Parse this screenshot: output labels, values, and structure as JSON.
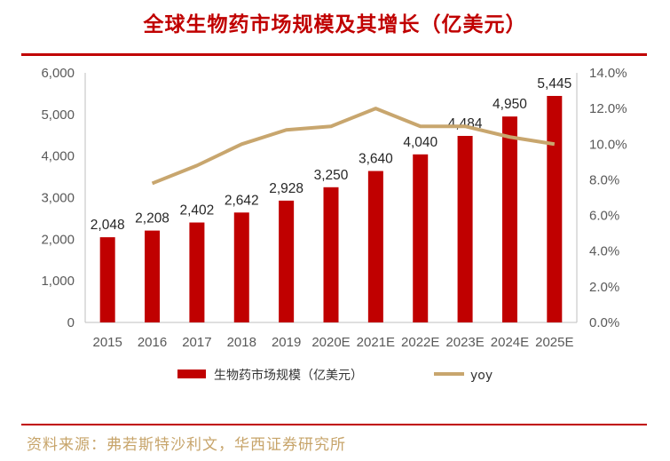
{
  "title": "全球生物药市场规模及其增长（亿美元）",
  "source": "资料来源：弗若斯特沙利文，华西证券研究所",
  "colors": {
    "bar": "#c00000",
    "line": "#c8a66e",
    "axis": "#bfbfbf"
  },
  "chart_data": {
    "type": "bar",
    "categories": [
      "2015",
      "2016",
      "2017",
      "2018",
      "2019",
      "2020E",
      "2021E",
      "2022E",
      "2023E",
      "2024E",
      "2025E"
    ],
    "series": [
      {
        "name": "生物药市场规模（亿美元）",
        "type": "bar",
        "axis": "left",
        "values": [
          2048,
          2208,
          2402,
          2642,
          2928,
          3250,
          3640,
          4040,
          4484,
          4950,
          5445
        ]
      },
      {
        "name": "yoy",
        "type": "line",
        "axis": "right",
        "values": [
          null,
          7.8,
          8.8,
          10.0,
          10.8,
          11.0,
          12.0,
          11.0,
          11.0,
          10.4,
          10.0
        ]
      }
    ],
    "data_labels": [
      "2,048",
      "2,208",
      "2,402",
      "2,642",
      "2,928",
      "3,250",
      "3,640",
      "4,040",
      "4,484",
      "4,950",
      "5,445"
    ],
    "y_left": {
      "ylim": [
        0,
        6000
      ],
      "ticks": [
        "0",
        "1,000",
        "2,000",
        "3,000",
        "4,000",
        "5,000",
        "6,000"
      ]
    },
    "y_right": {
      "ylim": [
        0,
        14
      ],
      "ticks": [
        "0.0%",
        "2.0%",
        "4.0%",
        "6.0%",
        "8.0%",
        "10.0%",
        "12.0%",
        "14.0%"
      ]
    },
    "grid": false,
    "legend_position": "bottom"
  }
}
